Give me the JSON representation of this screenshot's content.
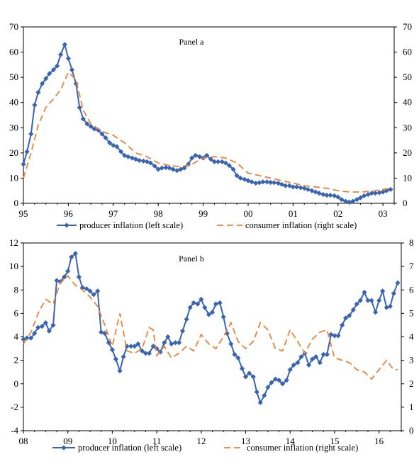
{
  "colors": {
    "producer": "#3a64b0",
    "consumer": "#e6843a"
  },
  "chart_data": [
    {
      "type": "line",
      "title": "Panel a",
      "x_ticks": [
        "95",
        "96",
        "97",
        "98",
        "99",
        "00",
        "01",
        "02",
        "03"
      ],
      "y_left_ticks": [
        "0",
        "10",
        "20",
        "30",
        "40",
        "50",
        "60",
        "70"
      ],
      "y_right_ticks": [
        "0",
        "10",
        "20",
        "30",
        "40",
        "50",
        "60",
        "70"
      ],
      "ylim_left": [
        0,
        70
      ],
      "ylim_right": [
        0,
        70
      ],
      "xlim": [
        1995.0,
        2003.25
      ],
      "legend_position": "bottom",
      "series": [
        {
          "name": "producer inflation (left scale)",
          "axis": "left",
          "marker": "diamond",
          "x": [
            1995.0,
            1995.08,
            1995.17,
            1995.25,
            1995.33,
            1995.42,
            1995.5,
            1995.58,
            1995.67,
            1995.75,
            1995.83,
            1995.92,
            1996.0,
            1996.08,
            1996.17,
            1996.25,
            1996.33,
            1996.42,
            1996.5,
            1996.58,
            1996.67,
            1996.75,
            1996.83,
            1996.92,
            1997.0,
            1997.08,
            1997.17,
            1997.25,
            1997.33,
            1997.42,
            1997.5,
            1997.58,
            1997.67,
            1997.75,
            1997.83,
            1997.92,
            1998.0,
            1998.08,
            1998.17,
            1998.25,
            1998.33,
            1998.42,
            1998.5,
            1998.58,
            1998.67,
            1998.75,
            1998.83,
            1998.92,
            1999.0,
            1999.08,
            1999.17,
            1999.25,
            1999.33,
            1999.42,
            1999.5,
            1999.58,
            1999.67,
            1999.75,
            1999.83,
            1999.92,
            2000.0,
            2000.08,
            2000.17,
            2000.25,
            2000.33,
            2000.42,
            2000.5,
            2000.58,
            2000.67,
            2000.75,
            2000.83,
            2000.92,
            2001.0,
            2001.08,
            2001.17,
            2001.25,
            2001.33,
            2001.42,
            2001.5,
            2001.58,
            2001.67,
            2001.75,
            2001.83,
            2001.92,
            2002.0,
            2002.08,
            2002.17,
            2002.25,
            2002.33,
            2002.42,
            2002.5,
            2002.58,
            2002.67,
            2002.75,
            2002.83,
            2002.92,
            2003.0,
            2003.08,
            2003.17
          ],
          "values": [
            15.5,
            20.5,
            27.5,
            39,
            44,
            47.5,
            49.5,
            51.5,
            53,
            54.5,
            59,
            63,
            57.5,
            53,
            47.5,
            38,
            33.5,
            31.5,
            30.5,
            29.5,
            29,
            27.5,
            26,
            24,
            23,
            22.5,
            20.5,
            19,
            18.5,
            18,
            17.5,
            17,
            16.8,
            16.5,
            16,
            14.8,
            13.5,
            14,
            14.2,
            14,
            13.5,
            13,
            13.5,
            14,
            15.5,
            18,
            19,
            18.5,
            18,
            19,
            17.5,
            16.5,
            16.5,
            16.5,
            16,
            15,
            13.5,
            11,
            10,
            9.5,
            9,
            8.5,
            8,
            8.2,
            8.5,
            8.5,
            8.3,
            8.2,
            8,
            7.5,
            7,
            7,
            6.5,
            6.5,
            6.2,
            6,
            5.5,
            5,
            4.5,
            4,
            3.5,
            3.2,
            3.2,
            3,
            2.5,
            1.5,
            0.8,
            0.5,
            0.8,
            1.5,
            2.2,
            3,
            3.5,
            4,
            4,
            4.2,
            4.5,
            5,
            5.5
          ]
        },
        {
          "name": "consumer inflation (right scale)",
          "axis": "right",
          "marker": "none",
          "x": [
            1995.0,
            1995.17,
            1995.33,
            1995.5,
            1995.67,
            1995.83,
            1996.0,
            1996.17,
            1996.33,
            1996.5,
            1996.67,
            1996.83,
            1997.0,
            1997.25,
            1997.5,
            1997.75,
            1998.0,
            1998.25,
            1998.5,
            1998.75,
            1999.0,
            1999.25,
            1999.5,
            1999.75,
            2000.0,
            2000.25,
            2000.5,
            2000.75,
            2001.0,
            2001.25,
            2001.5,
            2001.75,
            2002.0,
            2002.25,
            2002.5,
            2002.75,
            2003.0,
            2003.17
          ],
          "values": [
            10,
            20,
            31,
            38,
            41.5,
            45,
            52,
            49,
            37,
            31.5,
            29.5,
            28,
            27,
            24,
            20,
            18.5,
            16,
            15,
            14.5,
            15.5,
            18,
            18.5,
            18,
            16,
            12,
            11,
            10,
            9,
            8,
            7,
            6.5,
            6,
            5,
            4.5,
            4.5,
            4.8,
            5.5,
            6
          ]
        }
      ]
    },
    {
      "type": "line",
      "title": "Panel b",
      "x_ticks": [
        "08",
        "09",
        "10",
        "11",
        "12",
        "13",
        "14",
        "15",
        "16"
      ],
      "y_left_ticks": [
        "-4",
        "-2",
        "0",
        "2",
        "4",
        "6",
        "8",
        "10",
        "12"
      ],
      "y_right_ticks": [
        "0",
        "1",
        "2",
        "3",
        "4",
        "5",
        "6",
        "7",
        "8"
      ],
      "ylim_left": [
        -4,
        12
      ],
      "ylim_right": [
        0,
        8
      ],
      "xlim": [
        2008.0,
        2016.5
      ],
      "legend_position": "bottom",
      "series": [
        {
          "name": "producer inflation (left scale)",
          "axis": "left",
          "marker": "diamond",
          "x": [
            2008.0,
            2008.08,
            2008.17,
            2008.25,
            2008.33,
            2008.42,
            2008.5,
            2008.58,
            2008.67,
            2008.75,
            2008.83,
            2008.92,
            2009.0,
            2009.08,
            2009.17,
            2009.25,
            2009.33,
            2009.42,
            2009.5,
            2009.58,
            2009.67,
            2009.75,
            2009.83,
            2009.92,
            2010.0,
            2010.08,
            2010.17,
            2010.25,
            2010.33,
            2010.42,
            2010.5,
            2010.58,
            2010.67,
            2010.75,
            2010.83,
            2010.92,
            2011.0,
            2011.08,
            2011.17,
            2011.25,
            2011.33,
            2011.42,
            2011.5,
            2011.58,
            2011.67,
            2011.75,
            2011.83,
            2011.92,
            2012.0,
            2012.08,
            2012.17,
            2012.25,
            2012.33,
            2012.42,
            2012.5,
            2012.58,
            2012.67,
            2012.75,
            2012.83,
            2012.92,
            2013.0,
            2013.08,
            2013.17,
            2013.25,
            2013.33,
            2013.42,
            2013.5,
            2013.58,
            2013.67,
            2013.75,
            2013.83,
            2013.92,
            2014.0,
            2014.08,
            2014.17,
            2014.25,
            2014.33,
            2014.42,
            2014.5,
            2014.58,
            2014.67,
            2014.75,
            2014.83,
            2014.92,
            2015.0,
            2015.08,
            2015.17,
            2015.25,
            2015.33,
            2015.42,
            2015.5,
            2015.58,
            2015.67,
            2015.75,
            2015.83,
            2015.92,
            2016.0,
            2016.08,
            2016.17,
            2016.25,
            2016.33,
            2016.42
          ],
          "values": [
            3.8,
            3.9,
            3.9,
            4.3,
            4.8,
            4.9,
            5.2,
            4.5,
            5,
            8.8,
            8.7,
            9.1,
            9.6,
            10.8,
            11.1,
            9.1,
            8.2,
            8.1,
            7.9,
            7.6,
            7.9,
            4.4,
            4.3,
            3.5,
            2.9,
            2.1,
            1.1,
            2.3,
            3.2,
            3.2,
            3.2,
            3.4,
            2.8,
            2.6,
            2.6,
            3.2,
            3,
            2.7,
            3.5,
            4,
            3.4,
            3.5,
            3.5,
            4.5,
            5.5,
            6.5,
            6.9,
            6.8,
            7.2,
            6.5,
            5.9,
            6.1,
            6.8,
            6.9,
            5.7,
            4.3,
            3.4,
            2.5,
            2.2,
            1.3,
            0.6,
            0.9,
            0.6,
            -0.7,
            -1.6,
            -1,
            -0.3,
            0.1,
            0.4,
            0.3,
            0,
            0.3,
            1.2,
            1.6,
            1.8,
            2.3,
            2.6,
            1.6,
            2.1,
            2.3,
            1.8,
            2.5,
            2.5,
            4.2,
            4.1,
            4.1,
            5,
            5.6,
            5.8,
            6.3,
            6.8,
            7.1,
            7.8,
            7.1,
            7.1,
            6.1,
            7.1,
            7.9,
            6.5,
            6.6,
            7.7,
            8.6
          ]
        },
        {
          "name": "consumer inflation (right scale)",
          "axis": "right",
          "marker": "none",
          "x": [
            2008.0,
            2008.17,
            2008.33,
            2008.5,
            2008.67,
            2008.83,
            2009.0,
            2009.17,
            2009.33,
            2009.5,
            2009.67,
            2009.83,
            2010.0,
            2010.17,
            2010.33,
            2010.5,
            2010.67,
            2010.83,
            2010.92,
            2011.0,
            2011.17,
            2011.33,
            2011.5,
            2011.67,
            2011.83,
            2012.0,
            2012.17,
            2012.33,
            2012.5,
            2012.67,
            2012.83,
            2013.0,
            2013.17,
            2013.33,
            2013.5,
            2013.67,
            2013.83,
            2014.0,
            2014.17,
            2014.33,
            2014.5,
            2014.67,
            2014.83,
            2015.0,
            2015.17,
            2015.33,
            2015.5,
            2015.67,
            2015.83,
            2016.0,
            2016.17,
            2016.33,
            2016.42
          ],
          "values": [
            3.7,
            4.2,
            5,
            5.6,
            5.4,
            6.3,
            6.6,
            6.2,
            6,
            5.7,
            5.3,
            4.5,
            3.6,
            5,
            3.4,
            3.3,
            3.5,
            4.4,
            4.3,
            3.2,
            3.6,
            3.1,
            3.3,
            3.6,
            3.4,
            4.1,
            3.7,
            3.5,
            4,
            4.6,
            3.8,
            3.5,
            3.8,
            4.6,
            4.3,
            3.5,
            3.4,
            4.3,
            3.8,
            3.3,
            3.9,
            4.2,
            4.3,
            3.1,
            3,
            2.9,
            2.6,
            2.5,
            2.2,
            2.6,
            3,
            2.6,
            2.6
          ]
        }
      ]
    }
  ]
}
